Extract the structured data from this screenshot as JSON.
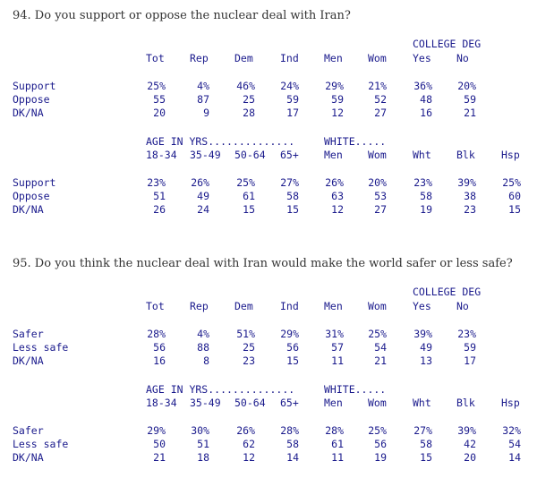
{
  "questions": [
    {
      "title": "94. Do you support or oppose the nuclear deal with Iran?",
      "block1": {
        "group_header": "COLLEGE DEG",
        "columns": [
          "Tot",
          "Rep",
          "Dem",
          "Ind",
          "Men",
          "Wom",
          "Yes",
          "No"
        ],
        "rows": [
          {
            "label": "Support",
            "values": [
              "25%",
              "4%",
              "46%",
              "24%",
              "29%",
              "21%",
              "36%",
              "20%"
            ]
          },
          {
            "label": "Oppose",
            "values": [
              "55",
              "87",
              "25",
              "59",
              "59",
              "52",
              "48",
              "59"
            ]
          },
          {
            "label": "DK/NA",
            "values": [
              "20",
              "9",
              "28",
              "17",
              "12",
              "27",
              "16",
              "21"
            ]
          }
        ]
      },
      "block2": {
        "group_header_age": "AGE IN YRS..............",
        "group_header_white": "WHITE.....",
        "columns": [
          "18-34",
          "35-49",
          "50-64",
          "65+",
          "Men",
          "Wom",
          "Wht",
          "Blk",
          "Hsp"
        ],
        "rows": [
          {
            "label": "Support",
            "values": [
              "23%",
              "26%",
              "25%",
              "27%",
              "26%",
              "20%",
              "23%",
              "39%",
              "25%"
            ]
          },
          {
            "label": "Oppose",
            "values": [
              "51",
              "49",
              "61",
              "58",
              "63",
              "53",
              "58",
              "38",
              "60"
            ]
          },
          {
            "label": "DK/NA",
            "values": [
              "26",
              "24",
              "15",
              "15",
              "12",
              "27",
              "19",
              "23",
              "15"
            ]
          }
        ]
      }
    },
    {
      "title": "95. Do you think the nuclear deal with Iran would make the world safer or less safe?",
      "block1": {
        "group_header": "COLLEGE DEG",
        "columns": [
          "Tot",
          "Rep",
          "Dem",
          "Ind",
          "Men",
          "Wom",
          "Yes",
          "No"
        ],
        "rows": [
          {
            "label": "Safer",
            "values": [
              "28%",
              "4%",
              "51%",
              "29%",
              "31%",
              "25%",
              "39%",
              "23%"
            ]
          },
          {
            "label": "Less safe",
            "values": [
              "56",
              "88",
              "25",
              "56",
              "57",
              "54",
              "49",
              "59"
            ]
          },
          {
            "label": "DK/NA",
            "values": [
              "16",
              "8",
              "23",
              "15",
              "11",
              "21",
              "13",
              "17"
            ]
          }
        ]
      },
      "block2": {
        "group_header_age": "AGE IN YRS..............",
        "group_header_white": "WHITE.....",
        "columns": [
          "18-34",
          "35-49",
          "50-64",
          "65+",
          "Men",
          "Wom",
          "Wht",
          "Blk",
          "Hsp"
        ],
        "rows": [
          {
            "label": "Safer",
            "values": [
              "29%",
              "30%",
              "26%",
              "28%",
              "28%",
              "25%",
              "27%",
              "39%",
              "32%"
            ]
          },
          {
            "label": "Less safe",
            "values": [
              "50",
              "51",
              "62",
              "58",
              "61",
              "56",
              "58",
              "42",
              "54"
            ]
          },
          {
            "label": "DK/NA",
            "values": [
              "21",
              "18",
              "12",
              "14",
              "11",
              "19",
              "15",
              "20",
              "14"
            ]
          }
        ]
      }
    }
  ]
}
